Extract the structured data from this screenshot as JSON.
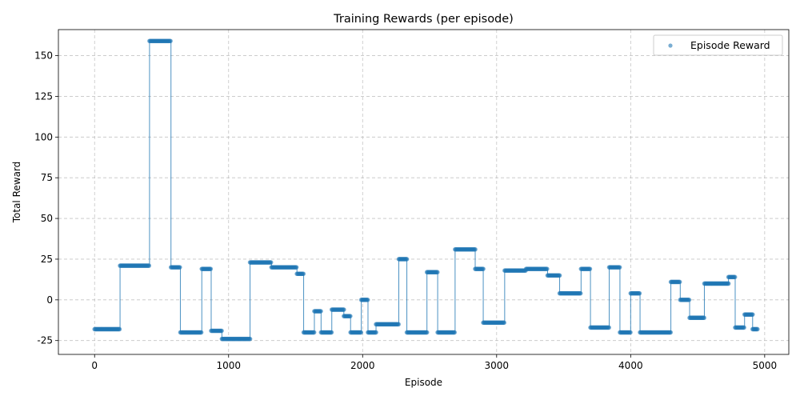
{
  "chart_data": {
    "type": "scatter",
    "title": "Training Rewards (per episode)",
    "xlabel": "Episode",
    "ylabel": "Total Reward",
    "xlim": [
      -270,
      5180
    ],
    "ylim": [
      -33.5,
      166
    ],
    "xticks": [
      0,
      1000,
      2000,
      3000,
      4000,
      5000
    ],
    "yticks": [
      -25,
      0,
      25,
      50,
      75,
      100,
      125,
      150
    ],
    "grid": true,
    "legend_position": "top-right",
    "colors": {
      "series": "#1f77b4",
      "grid": "#b0b0b0",
      "axes": "#000000"
    },
    "series": [
      {
        "name": "Episode Reward",
        "style": "scatter-with-connecting-line",
        "segments": [
          {
            "x_start": 0,
            "x_end": 190,
            "y": -18
          },
          {
            "x_start": 190,
            "x_end": 410,
            "y": 21
          },
          {
            "x_start": 410,
            "x_end": 570,
            "y": 159
          },
          {
            "x_start": 570,
            "x_end": 640,
            "y": 20
          },
          {
            "x_start": 640,
            "x_end": 800,
            "y": -20
          },
          {
            "x_start": 800,
            "x_end": 870,
            "y": 19
          },
          {
            "x_start": 870,
            "x_end": 950,
            "y": -19
          },
          {
            "x_start": 950,
            "x_end": 1160,
            "y": -24
          },
          {
            "x_start": 1160,
            "x_end": 1320,
            "y": 23
          },
          {
            "x_start": 1320,
            "x_end": 1510,
            "y": 20
          },
          {
            "x_start": 1510,
            "x_end": 1560,
            "y": 16
          },
          {
            "x_start": 1560,
            "x_end": 1640,
            "y": -20
          },
          {
            "x_start": 1640,
            "x_end": 1690,
            "y": -7
          },
          {
            "x_start": 1690,
            "x_end": 1770,
            "y": -20
          },
          {
            "x_start": 1770,
            "x_end": 1860,
            "y": -6
          },
          {
            "x_start": 1860,
            "x_end": 1910,
            "y": -10
          },
          {
            "x_start": 1910,
            "x_end": 1990,
            "y": -20
          },
          {
            "x_start": 1990,
            "x_end": 2040,
            "y": 0
          },
          {
            "x_start": 2040,
            "x_end": 2100,
            "y": -20
          },
          {
            "x_start": 2100,
            "x_end": 2270,
            "y": -15
          },
          {
            "x_start": 2270,
            "x_end": 2330,
            "y": 25
          },
          {
            "x_start": 2330,
            "x_end": 2480,
            "y": -20
          },
          {
            "x_start": 2480,
            "x_end": 2560,
            "y": 17
          },
          {
            "x_start": 2560,
            "x_end": 2690,
            "y": -20
          },
          {
            "x_start": 2690,
            "x_end": 2840,
            "y": 31
          },
          {
            "x_start": 2840,
            "x_end": 2900,
            "y": 19
          },
          {
            "x_start": 2900,
            "x_end": 3060,
            "y": -14
          },
          {
            "x_start": 3060,
            "x_end": 3220,
            "y": 18
          },
          {
            "x_start": 3220,
            "x_end": 3380,
            "y": 19
          },
          {
            "x_start": 3380,
            "x_end": 3470,
            "y": 15
          },
          {
            "x_start": 3470,
            "x_end": 3630,
            "y": 4
          },
          {
            "x_start": 3630,
            "x_end": 3700,
            "y": 19
          },
          {
            "x_start": 3700,
            "x_end": 3840,
            "y": -17
          },
          {
            "x_start": 3840,
            "x_end": 3920,
            "y": 20
          },
          {
            "x_start": 3920,
            "x_end": 4000,
            "y": -20
          },
          {
            "x_start": 4000,
            "x_end": 4070,
            "y": 4
          },
          {
            "x_start": 4070,
            "x_end": 4300,
            "y": -20
          },
          {
            "x_start": 4300,
            "x_end": 4370,
            "y": 11
          },
          {
            "x_start": 4370,
            "x_end": 4440,
            "y": 0
          },
          {
            "x_start": 4440,
            "x_end": 4550,
            "y": -11
          },
          {
            "x_start": 4550,
            "x_end": 4730,
            "y": 10
          },
          {
            "x_start": 4730,
            "x_end": 4780,
            "y": 14
          },
          {
            "x_start": 4780,
            "x_end": 4850,
            "y": -17
          },
          {
            "x_start": 4850,
            "x_end": 4910,
            "y": -9
          },
          {
            "x_start": 4910,
            "x_end": 4950,
            "y": -18
          }
        ]
      }
    ]
  }
}
